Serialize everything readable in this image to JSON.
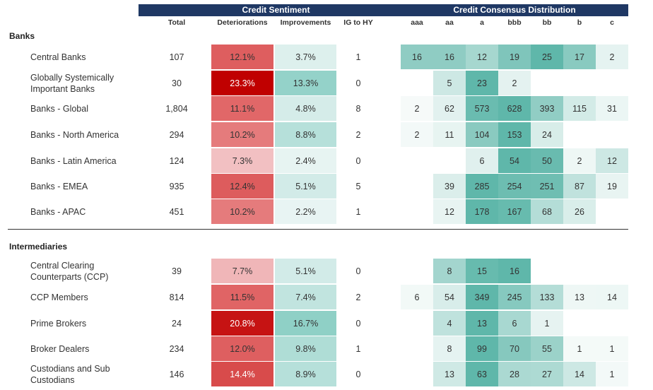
{
  "headers": {
    "credit_sentiment": "Credit Sentiment",
    "credit_consensus": "Credit Consensus Distribution"
  },
  "columns": {
    "total": "Total",
    "deteriorations": "Deteriorations",
    "improvements": "Improvements",
    "ig_to_hy": "IG to HY",
    "ratings": [
      "aaa",
      "aa",
      "a",
      "bbb",
      "bb",
      "b",
      "c"
    ]
  },
  "sections": [
    {
      "title": "Banks",
      "rows": [
        {
          "label": "Central Banks",
          "total": "107",
          "det": "12.1%",
          "imp": "3.7%",
          "ig": "1",
          "dist": [
            "16",
            "16",
            "12",
            "19",
            "25",
            "17",
            "2"
          ]
        },
        {
          "label": "Globally Systemically Important Banks",
          "total": "30",
          "det": "23.3%",
          "imp": "13.3%",
          "ig": "0",
          "dist": [
            "",
            "5",
            "23",
            "2",
            "",
            "",
            ""
          ]
        },
        {
          "label": "Banks - Global",
          "total": "1,804",
          "det": "11.1%",
          "imp": "4.8%",
          "ig": "8",
          "dist": [
            "2",
            "62",
            "573",
            "628",
            "393",
            "115",
            "31"
          ]
        },
        {
          "label": "Banks - North America",
          "total": "294",
          "det": "10.2%",
          "imp": "8.8%",
          "ig": "2",
          "dist": [
            "2",
            "11",
            "104",
            "153",
            "24",
            "",
            ""
          ]
        },
        {
          "label": "Banks - Latin America",
          "total": "124",
          "det": "7.3%",
          "imp": "2.4%",
          "ig": "0",
          "dist": [
            "",
            "",
            "6",
            "54",
            "50",
            "2",
            "12"
          ]
        },
        {
          "label": "Banks - EMEA",
          "total": "935",
          "det": "12.4%",
          "imp": "5.1%",
          "ig": "5",
          "dist": [
            "",
            "39",
            "285",
            "254",
            "251",
            "87",
            "19"
          ]
        },
        {
          "label": "Banks - APAC",
          "total": "451",
          "det": "10.2%",
          "imp": "2.2%",
          "ig": "1",
          "dist": [
            "",
            "12",
            "178",
            "167",
            "68",
            "26",
            ""
          ]
        }
      ]
    },
    {
      "title": "Intermediaries",
      "rows": [
        {
          "label": "Central Clearing Counterparts (CCP)",
          "total": "39",
          "det": "7.7%",
          "imp": "5.1%",
          "ig": "0",
          "dist": [
            "",
            "8",
            "15",
            "16",
            "",
            "",
            ""
          ]
        },
        {
          "label": "CCP Members",
          "total": "814",
          "det": "11.5%",
          "imp": "7.4%",
          "ig": "2",
          "dist": [
            "6",
            "54",
            "349",
            "245",
            "133",
            "13",
            "14"
          ]
        },
        {
          "label": "Prime Brokers",
          "total": "24",
          "det": "20.8%",
          "imp": "16.7%",
          "ig": "0",
          "dist": [
            "",
            "4",
            "13",
            "6",
            "1",
            "",
            ""
          ]
        },
        {
          "label": "Broker Dealers",
          "total": "234",
          "det": "12.0%",
          "imp": "9.8%",
          "ig": "1",
          "dist": [
            "",
            "8",
            "99",
            "70",
            "55",
            "1",
            "1"
          ]
        },
        {
          "label": "Custodians and Sub Custodians",
          "total": "146",
          "det": "14.4%",
          "imp": "8.9%",
          "ig": "0",
          "dist": [
            "",
            "13",
            "63",
            "28",
            "27",
            "14",
            "1"
          ]
        }
      ]
    }
  ],
  "colors": {
    "header_bg": "#1f3864",
    "deterioration_scale": [
      "#f3c7c9",
      "#e16869",
      "#c00000"
    ],
    "improvement_scale": [
      "#eaf5f4",
      "#8fd0c6"
    ],
    "distribution_scale": [
      "#f7fbfa",
      "#5fb7aa"
    ]
  }
}
